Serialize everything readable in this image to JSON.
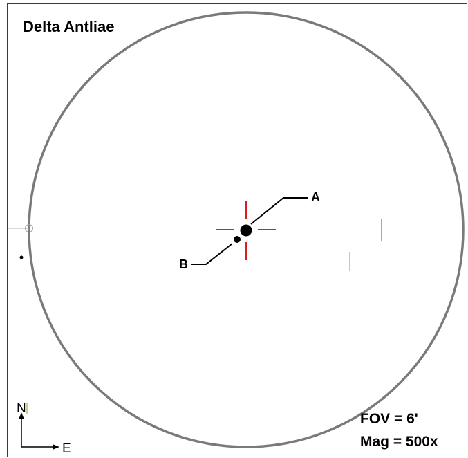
{
  "title": "Delta Antliae",
  "stars": {
    "a_label": "A",
    "b_label": "B"
  },
  "info": {
    "fov": "FOV = 6'",
    "mag": "Mag = 500x"
  },
  "compass": {
    "north": "N",
    "east": "E"
  },
  "colors": {
    "circle": "#7a7a7a",
    "crosshair": "#d62020",
    "star": "#000000",
    "marks": "#9b9b20"
  }
}
